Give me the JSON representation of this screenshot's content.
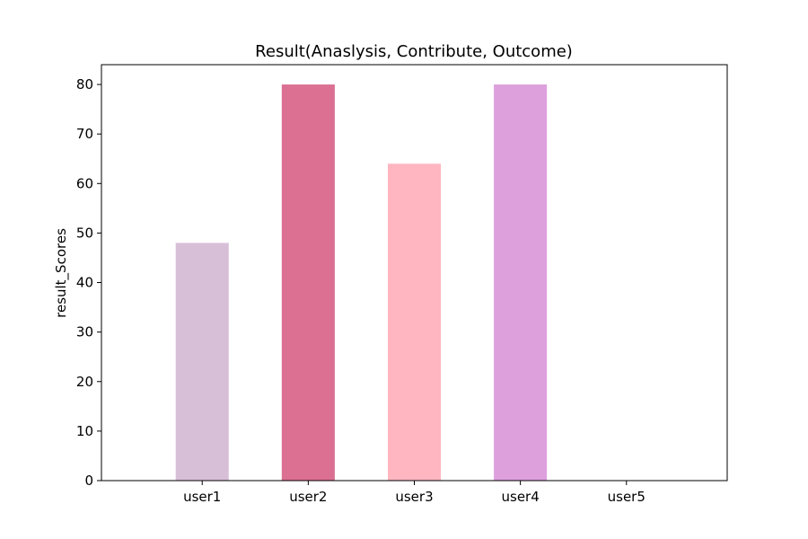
{
  "chart_data": {
    "type": "bar",
    "title": "Result(Anaslysis, Contribute, Outcome)",
    "xlabel": "",
    "ylabel": "result_Scores",
    "categories": [
      "user1",
      "user2",
      "user3",
      "user4",
      "user5"
    ],
    "values": [
      48,
      80,
      64,
      80,
      0
    ],
    "colors": [
      "#D8BFD8",
      "#DB7093",
      "#FFB6C1",
      "#DDA0DD",
      "#FFFFFF"
    ],
    "ylim": [
      0,
      84
    ],
    "yticks": [
      0,
      10,
      20,
      30,
      40,
      50,
      60,
      70,
      80
    ],
    "grid": false,
    "legend": "none"
  }
}
